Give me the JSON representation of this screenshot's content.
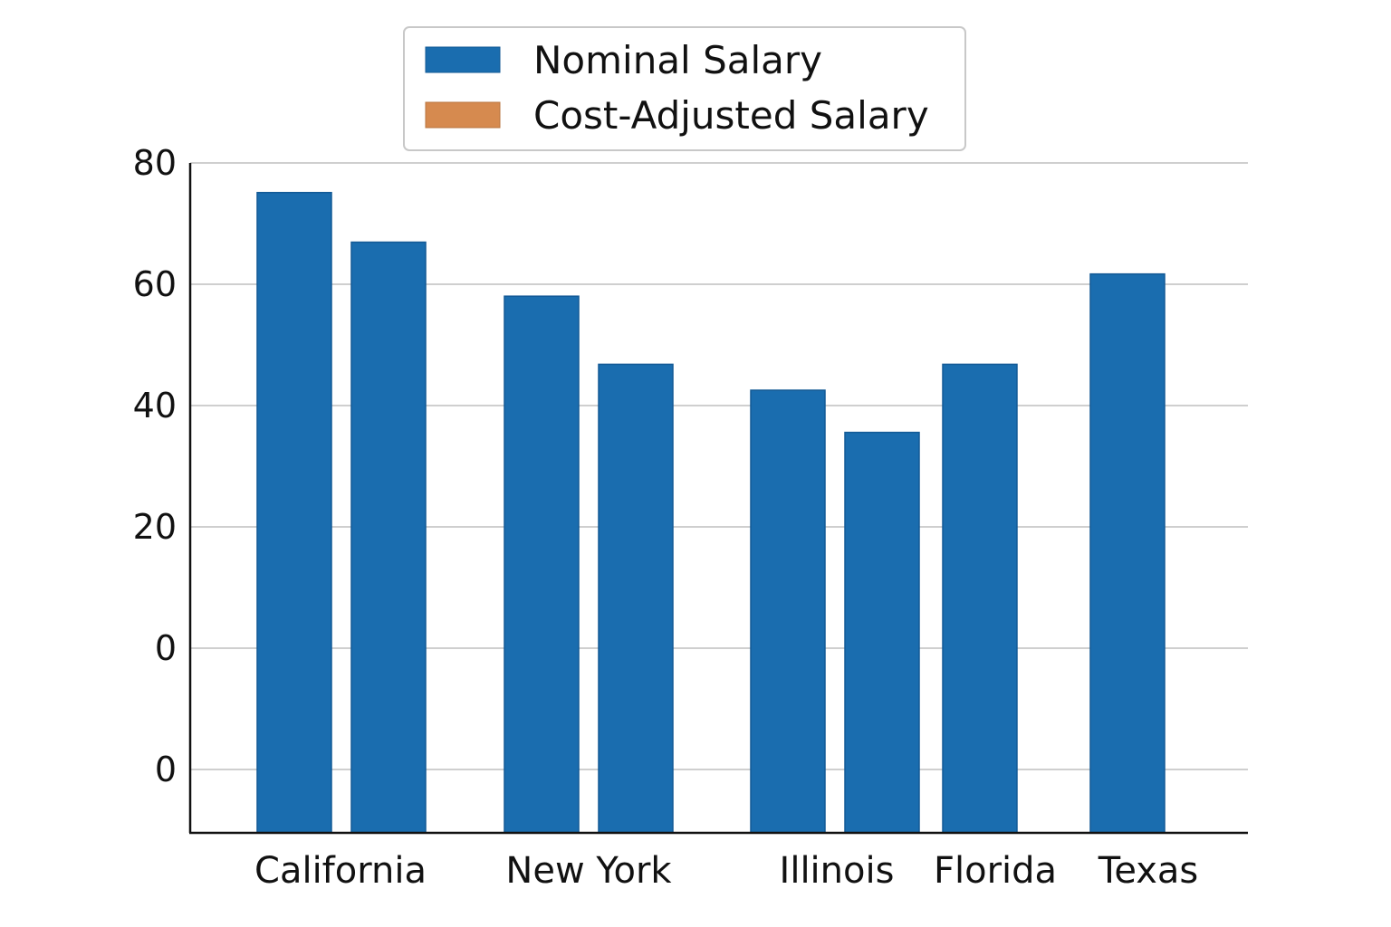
{
  "chart_data": {
    "type": "bar",
    "categories": [
      "California",
      "New York",
      "Illinois",
      "Florida",
      "Texas"
    ],
    "series": [
      {
        "name": "Nominal Salary",
        "color": "#1a6daf"
      },
      {
        "name": "Cost-Adjusted Salary",
        "color": "#d68a4f"
      }
    ],
    "bars": [
      {
        "category": "California",
        "value": 76,
        "color": "#1a6daf"
      },
      {
        "category": "California",
        "value": 69.3,
        "color": "#1a6daf"
      },
      {
        "category": "New York",
        "value": 62,
        "color": "#1a6daf"
      },
      {
        "category": "New York",
        "value": 52.8,
        "color": "#1a6daf"
      },
      {
        "category": "Illinois",
        "value": 49.3,
        "color": "#1a6daf"
      },
      {
        "category": "Illinois",
        "value": 43.6,
        "color": "#1a6daf"
      },
      {
        "category": "Florida",
        "value": 52.8,
        "color": "#1a6daf"
      },
      {
        "category": "Texas",
        "value": 65,
        "color": "#1a6daf"
      }
    ],
    "y_tick_labels": [
      "80",
      "60",
      "40",
      "20",
      "0",
      "0"
    ],
    "ylim": [
      -10.5,
      80
    ],
    "grid": true,
    "legend_position": "top-center",
    "title": "",
    "xlabel": "",
    "ylabel": ""
  }
}
